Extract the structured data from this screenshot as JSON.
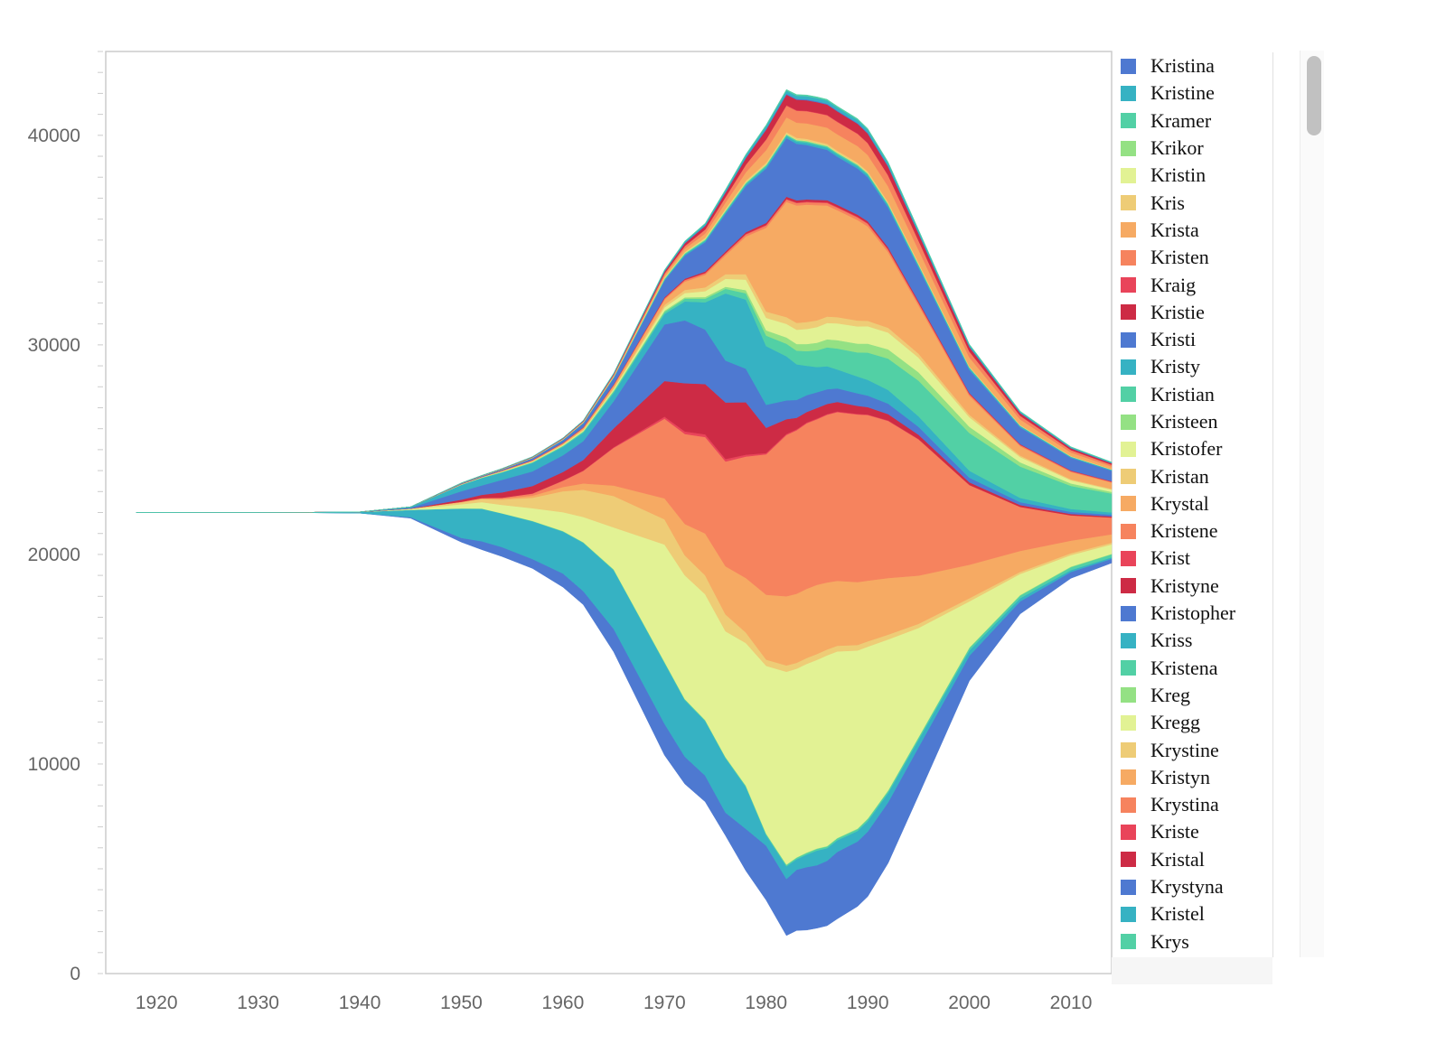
{
  "chart_data": {
    "type": "area",
    "subtype": "streamgraph",
    "x_ticks": [
      1920,
      1930,
      1940,
      1950,
      1960,
      1970,
      1980,
      1990,
      2000,
      2010
    ],
    "y_ticks": [
      0,
      10000,
      20000,
      30000,
      40000
    ],
    "xlim": [
      1915,
      2014
    ],
    "ylim": [
      0,
      44000
    ],
    "grid": false,
    "legend_position": "right",
    "x": [
      1918,
      1925,
      1930,
      1935,
      1940,
      1945,
      1950,
      1952,
      1954,
      1957,
      1960,
      1962,
      1965,
      1970,
      1972,
      1974,
      1976,
      1978,
      1980,
      1982,
      1983,
      1984,
      1985,
      1986,
      1987,
      1989,
      1990,
      1992,
      1995,
      2000,
      2005,
      2010,
      2014
    ],
    "series": [
      {
        "name": "Kristina",
        "values": [
          0,
          0,
          0,
          0,
          2,
          50,
          200,
          400,
          450,
          450,
          650,
          650,
          1100,
          1500,
          1300,
          1250,
          1100,
          2000,
          2600,
          2700,
          2900,
          3000,
          3000,
          3100,
          3200,
          3100,
          3100,
          2900,
          2300,
          1200,
          600,
          300,
          200
        ]
      },
      {
        "name": "Kristine",
        "values": [
          0,
          5,
          10,
          20,
          60,
          350,
          1400,
          1550,
          1600,
          1800,
          2000,
          2300,
          2800,
          2900,
          2700,
          2600,
          2600,
          2000,
          500,
          600,
          500,
          600,
          700,
          600,
          550,
          500,
          500,
          450,
          350,
          250,
          150,
          90,
          70
        ]
      },
      {
        "name": "Kramer",
        "values": [
          0,
          0,
          0,
          0,
          0,
          0,
          5,
          10,
          10,
          15,
          20,
          25,
          30,
          40,
          40,
          40,
          40,
          50,
          60,
          70,
          70,
          80,
          80,
          80,
          90,
          90,
          100,
          100,
          110,
          120,
          130,
          140,
          140
        ]
      },
      {
        "name": "Krikor",
        "values": [
          0,
          0,
          0,
          0,
          0,
          0,
          5,
          5,
          5,
          8,
          10,
          10,
          12,
          15,
          15,
          15,
          15,
          18,
          20,
          20,
          20,
          22,
          22,
          22,
          22,
          24,
          24,
          24,
          25,
          26,
          26,
          27,
          27
        ]
      },
      {
        "name": "Kristin",
        "values": [
          0,
          0,
          0,
          0,
          0,
          40,
          200,
          300,
          400,
          600,
          900,
          1200,
          2000,
          5600,
          5900,
          6000,
          6000,
          6800,
          8000,
          9200,
          9000,
          9000,
          9000,
          9100,
          8900,
          8500,
          8200,
          7200,
          5200,
          2200,
          1000,
          550,
          450
        ]
      },
      {
        "name": "Kris",
        "values": [
          0,
          0,
          0,
          0,
          0,
          20,
          90,
          150,
          250,
          500,
          1000,
          1300,
          1500,
          1200,
          950,
          900,
          800,
          500,
          300,
          300,
          280,
          280,
          280,
          280,
          270,
          260,
          250,
          230,
          200,
          150,
          100,
          90,
          80
        ]
      },
      {
        "name": "Krista",
        "values": [
          0,
          0,
          0,
          0,
          0,
          0,
          20,
          30,
          50,
          100,
          200,
          300,
          500,
          1000,
          1500,
          2000,
          2300,
          2600,
          3100,
          3300,
          3300,
          3300,
          3300,
          3200,
          3100,
          3000,
          2900,
          2700,
          2300,
          1600,
          1000,
          600,
          400
        ]
      },
      {
        "name": "Kristen",
        "values": [
          0,
          0,
          0,
          0,
          0,
          0,
          10,
          20,
          40,
          100,
          300,
          600,
          1800,
          3800,
          4300,
          4600,
          5000,
          5800,
          6700,
          7700,
          7800,
          7900,
          7900,
          8000,
          8050,
          8000,
          7900,
          7500,
          6500,
          3800,
          2100,
          1200,
          800
        ]
      },
      {
        "name": "Kraig",
        "values": [
          0,
          0,
          0,
          0,
          0,
          0,
          0,
          0,
          5,
          10,
          15,
          20,
          30,
          100,
          120,
          130,
          120,
          90,
          60,
          50,
          45,
          40,
          40,
          38,
          35,
          30,
          28,
          24,
          20,
          14,
          10,
          8,
          6
        ]
      },
      {
        "name": "Kristie",
        "values": [
          0,
          0,
          0,
          0,
          0,
          0,
          100,
          150,
          250,
          350,
          400,
          500,
          900,
          1700,
          2300,
          2400,
          2700,
          2500,
          1200,
          700,
          550,
          500,
          500,
          480,
          450,
          380,
          350,
          300,
          200,
          120,
          80,
          60,
          50
        ]
      },
      {
        "name": "Kristi",
        "values": [
          0,
          0,
          0,
          0,
          0,
          40,
          400,
          450,
          600,
          700,
          800,
          900,
          1300,
          2700,
          3000,
          2600,
          2000,
          1600,
          1100,
          900,
          850,
          800,
          750,
          700,
          650,
          600,
          550,
          500,
          380,
          220,
          140,
          100,
          80
        ]
      },
      {
        "name": "Kristy",
        "values": [
          0,
          0,
          0,
          0,
          0,
          40,
          300,
          350,
          350,
          400,
          400,
          400,
          400,
          500,
          900,
          1300,
          3200,
          3300,
          2800,
          2100,
          1700,
          1400,
          1200,
          1100,
          900,
          800,
          750,
          650,
          500,
          330,
          200,
          140,
          110
        ]
      },
      {
        "name": "Kristian",
        "values": [
          0,
          0,
          0,
          0,
          0,
          0,
          10,
          15,
          20,
          30,
          40,
          50,
          70,
          100,
          130,
          170,
          220,
          300,
          500,
          600,
          650,
          700,
          800,
          900,
          1000,
          1150,
          1300,
          1500,
          1700,
          1800,
          1500,
          1100,
          900
        ]
      },
      {
        "name": "Kristeen",
        "values": [
          0,
          0,
          0,
          0,
          0,
          0,
          5,
          10,
          10,
          15,
          20,
          25,
          40,
          60,
          70,
          80,
          100,
          150,
          250,
          300,
          320,
          340,
          360,
          380,
          400,
          420,
          430,
          440,
          400,
          300,
          200,
          120,
          80
        ]
      },
      {
        "name": "Kristofer",
        "values": [
          0,
          0,
          0,
          0,
          0,
          0,
          10,
          10,
          20,
          20,
          30,
          40,
          60,
          150,
          200,
          280,
          380,
          500,
          600,
          650,
          680,
          720,
          750,
          780,
          800,
          820,
          830,
          800,
          700,
          450,
          250,
          150,
          110
        ]
      },
      {
        "name": "Kristan",
        "values": [
          0,
          0,
          0,
          0,
          0,
          0,
          5,
          10,
          10,
          20,
          30,
          40,
          60,
          120,
          150,
          180,
          220,
          260,
          300,
          320,
          330,
          330,
          320,
          310,
          300,
          280,
          260,
          230,
          190,
          120,
          70,
          45,
          35
        ]
      },
      {
        "name": "Krystal",
        "values": [
          0,
          0,
          0,
          0,
          0,
          0,
          10,
          10,
          20,
          30,
          40,
          60,
          100,
          250,
          400,
          600,
          900,
          1800,
          4000,
          5500,
          5600,
          5600,
          5500,
          5300,
          5100,
          4800,
          4500,
          3600,
          2300,
          900,
          450,
          350,
          300
        ]
      },
      {
        "name": "Kristene",
        "values": [
          0,
          0,
          0,
          0,
          0,
          0,
          5,
          5,
          10,
          15,
          20,
          25,
          40,
          60,
          70,
          80,
          90,
          100,
          110,
          115,
          115,
          118,
          118,
          120,
          122,
          125,
          126,
          125,
          110,
          80,
          50,
          35,
          28
        ]
      },
      {
        "name": "Krist",
        "values": [
          0,
          0,
          0,
          0,
          0,
          0,
          2,
          2,
          4,
          6,
          8,
          10,
          12,
          15,
          18,
          20,
          22,
          25,
          28,
          30,
          30,
          31,
          31,
          32,
          32,
          33,
          33,
          33,
          32,
          30,
          28,
          26,
          25
        ]
      },
      {
        "name": "Kristyne",
        "values": [
          0,
          0,
          0,
          0,
          0,
          0,
          2,
          3,
          4,
          8,
          10,
          14,
          20,
          40,
          50,
          60,
          70,
          80,
          90,
          100,
          100,
          100,
          100,
          100,
          100,
          95,
          90,
          80,
          60,
          35,
          20,
          14,
          10
        ]
      },
      {
        "name": "Kristopher",
        "values": [
          0,
          0,
          0,
          0,
          0,
          0,
          20,
          30,
          40,
          80,
          120,
          180,
          300,
          800,
          1100,
          1400,
          1800,
          2200,
          2600,
          2800,
          2700,
          2600,
          2500,
          2400,
          2300,
          2200,
          2100,
          1900,
          1600,
          1100,
          800,
          600,
          500
        ]
      },
      {
        "name": "Kriss",
        "values": [
          0,
          0,
          0,
          0,
          0,
          0,
          5,
          5,
          8,
          12,
          16,
          20,
          30,
          50,
          60,
          70,
          80,
          90,
          100,
          105,
          105,
          108,
          108,
          110,
          110,
          112,
          112,
          110,
          100,
          80,
          60,
          45,
          40
        ]
      },
      {
        "name": "Kristena",
        "values": [
          0,
          0,
          0,
          0,
          0,
          0,
          2,
          3,
          4,
          6,
          8,
          10,
          15,
          25,
          30,
          35,
          40,
          45,
          50,
          52,
          53,
          54,
          55,
          56,
          56,
          57,
          57,
          55,
          48,
          35,
          22,
          15,
          12
        ]
      },
      {
        "name": "Kreg",
        "values": [
          0,
          0,
          0,
          0,
          0,
          0,
          2,
          2,
          3,
          5,
          6,
          8,
          12,
          30,
          35,
          40,
          40,
          38,
          35,
          32,
          31,
          30,
          29,
          28,
          27,
          25,
          24,
          22,
          18,
          12,
          8,
          6,
          5
        ]
      },
      {
        "name": "Kregg",
        "values": [
          0,
          0,
          0,
          0,
          0,
          0,
          1,
          1,
          2,
          3,
          4,
          5,
          7,
          15,
          18,
          20,
          20,
          18,
          16,
          15,
          14,
          14,
          13,
          13,
          12,
          11,
          11,
          10,
          8,
          6,
          4,
          3,
          2
        ]
      },
      {
        "name": "Krystine",
        "values": [
          0,
          0,
          0,
          0,
          0,
          0,
          2,
          3,
          4,
          6,
          8,
          10,
          15,
          30,
          40,
          50,
          60,
          70,
          80,
          85,
          85,
          85,
          85,
          84,
          83,
          80,
          78,
          72,
          60,
          40,
          25,
          18,
          14
        ]
      },
      {
        "name": "Kristyn",
        "values": [
          0,
          0,
          0,
          0,
          0,
          0,
          2,
          3,
          5,
          10,
          15,
          20,
          40,
          100,
          150,
          200,
          300,
          400,
          600,
          700,
          720,
          740,
          760,
          770,
          780,
          790,
          780,
          740,
          620,
          420,
          260,
          170,
          130
        ]
      },
      {
        "name": "Krystina",
        "values": [
          0,
          0,
          0,
          0,
          0,
          0,
          2,
          3,
          5,
          8,
          12,
          18,
          30,
          80,
          120,
          180,
          250,
          350,
          500,
          560,
          570,
          580,
          590,
          590,
          590,
          580,
          560,
          520,
          430,
          280,
          170,
          110,
          85
        ]
      },
      {
        "name": "Kriste",
        "values": [
          0,
          0,
          0,
          0,
          0,
          0,
          1,
          1,
          2,
          3,
          4,
          5,
          7,
          12,
          14,
          16,
          18,
          20,
          22,
          23,
          23,
          24,
          24,
          24,
          24,
          23,
          23,
          22,
          20,
          15,
          11,
          9,
          8
        ]
      },
      {
        "name": "Kristal",
        "values": [
          0,
          0,
          0,
          0,
          0,
          0,
          2,
          3,
          5,
          8,
          12,
          18,
          30,
          80,
          120,
          160,
          200,
          300,
          450,
          500,
          500,
          500,
          500,
          490,
          480,
          460,
          440,
          400,
          320,
          200,
          120,
          80,
          60
        ]
      },
      {
        "name": "Krystyna",
        "values": [
          0,
          0,
          0,
          0,
          0,
          0,
          5,
          6,
          8,
          10,
          12,
          14,
          18,
          25,
          28,
          30,
          32,
          35,
          38,
          40,
          40,
          40,
          40,
          40,
          40,
          39,
          38,
          36,
          32,
          26,
          20,
          16,
          14
        ]
      },
      {
        "name": "Kristel",
        "values": [
          0,
          0,
          0,
          0,
          0,
          0,
          1,
          2,
          3,
          5,
          8,
          12,
          18,
          40,
          55,
          70,
          90,
          110,
          140,
          150,
          150,
          150,
          150,
          150,
          150,
          148,
          145,
          135,
          110,
          75,
          45,
          32,
          25
        ]
      },
      {
        "name": "Krys",
        "values": [
          0,
          0,
          0,
          0,
          0,
          0,
          1,
          1,
          2,
          3,
          4,
          6,
          10,
          20,
          25,
          30,
          35,
          40,
          50,
          55,
          55,
          56,
          56,
          56,
          56,
          55,
          54,
          52,
          46,
          36,
          28,
          22,
          18
        ]
      }
    ]
  },
  "colors": [
    "#4e79d1",
    "#36b2c3",
    "#52d0a5",
    "#94e184",
    "#e2f294",
    "#eecc76",
    "#f6aa63",
    "#f6835e",
    "#e9445a",
    "#cd2b45"
  ],
  "legend": {
    "items": [
      "Kristina",
      "Kristine",
      "Kramer",
      "Krikor",
      "Kristin",
      "Kris",
      "Krista",
      "Kristen",
      "Kraig",
      "Kristie",
      "Kristi",
      "Kristy",
      "Kristian",
      "Kristeen",
      "Kristofer",
      "Kristan",
      "Krystal",
      "Kristene",
      "Krist",
      "Kristyne",
      "Kristopher",
      "Kriss",
      "Kristena",
      "Kreg",
      "Kregg",
      "Krystine",
      "Kristyn",
      "Krystina",
      "Kriste",
      "Kristal",
      "Krystyna",
      "Kristel",
      "Krys"
    ]
  }
}
